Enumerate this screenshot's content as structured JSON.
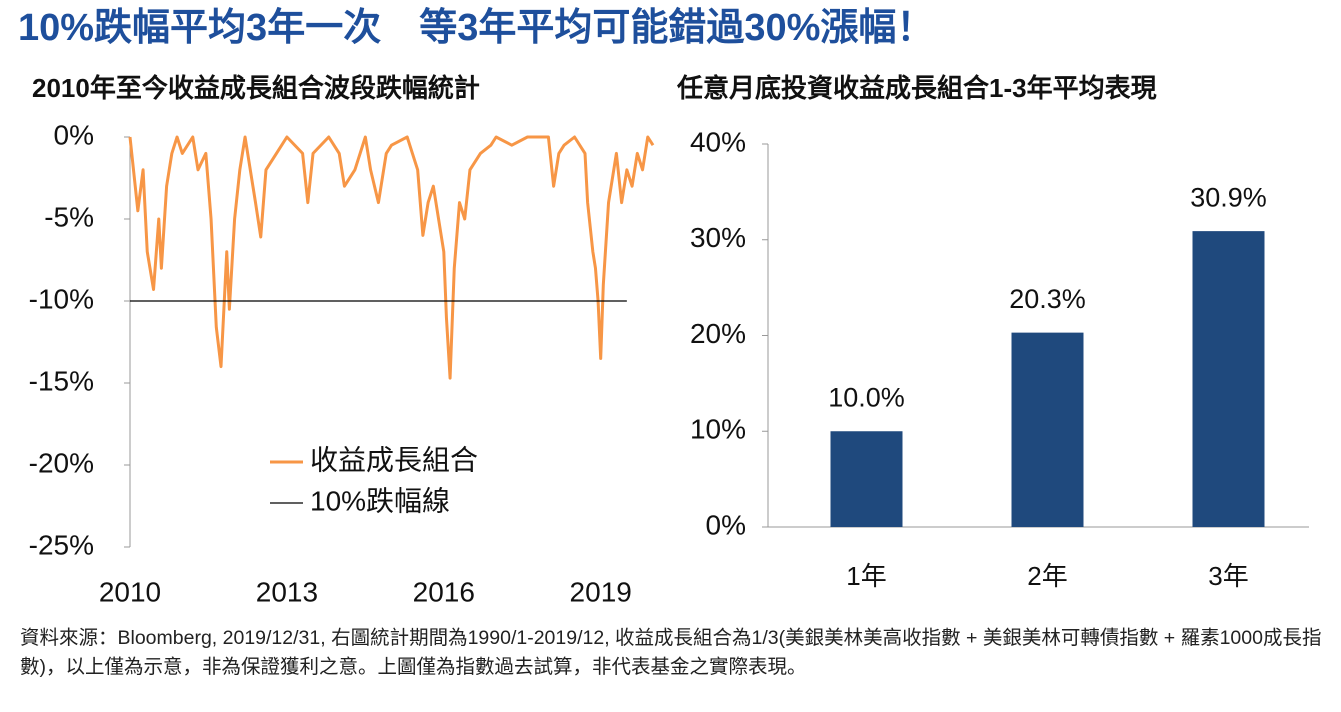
{
  "title": "10%跌幅平均3年一次　等3年平均可能錯過30%漲幅！",
  "footnote": "資料來源：Bloomberg, 2019/12/31, 右圖統計期間為1990/1-2019/12, 收益成長組合為1/3(美銀美林美高收指數 + 美銀美林可轉債指數 + 羅素1000成長指數)，以上僅為示意，非為保證獲利之意。上圖僅為指數過去試算，非代表基金之實際表現。",
  "chart_data": [
    {
      "type": "line",
      "title": "2010年至今收益成長組合波段跌幅統計",
      "xlim": [
        2010,
        2020
      ],
      "xticks": [
        2010,
        2013,
        2016,
        2019
      ],
      "ylim": [
        -25,
        0
      ],
      "yticks": [
        {
          "value": 0,
          "label": "0%"
        },
        {
          "value": -5,
          "label": "-5%"
        },
        {
          "value": -10,
          "label": "-10%"
        },
        {
          "value": -15,
          "label": "-15%"
        },
        {
          "value": -20,
          "label": "-20%"
        },
        {
          "value": -25,
          "label": "-25%"
        }
      ],
      "series": [
        {
          "name": "收益成長組合",
          "color": "#f79646",
          "x": [
            2010.0,
            2010.1,
            2010.15,
            2010.25,
            2010.33,
            2010.45,
            2010.55,
            2010.6,
            2010.7,
            2010.8,
            2010.9,
            2011.0,
            2011.2,
            2011.3,
            2011.45,
            2011.55,
            2011.65,
            2011.74,
            2011.85,
            2011.9,
            2012.0,
            2012.1,
            2012.2,
            2012.4,
            2012.5,
            2012.6,
            2012.8,
            2013.0,
            2013.3,
            2013.4,
            2013.5,
            2013.8,
            2014.0,
            2014.1,
            2014.3,
            2014.5,
            2014.6,
            2014.75,
            2014.9,
            2015.0,
            2015.3,
            2015.4,
            2015.5,
            2015.6,
            2015.7,
            2015.8,
            2015.9,
            2016.0,
            2016.05,
            2016.12,
            2016.2,
            2016.3,
            2016.4,
            2016.5,
            2016.7,
            2016.9,
            2017.0,
            2017.3,
            2017.6,
            2018.0,
            2018.1,
            2018.2,
            2018.3,
            2018.5,
            2018.7,
            2018.75,
            2018.85,
            2018.9,
            2018.95,
            2019.0,
            2019.05,
            2019.15,
            2019.3,
            2019.4,
            2019.5,
            2019.6,
            2019.7,
            2019.8,
            2019.9,
            2020.0
          ],
          "values": [
            0,
            -3,
            -4.5,
            -2,
            -7,
            -9.3,
            -5,
            -8,
            -3,
            -1,
            0,
            -1,
            0,
            -2,
            -1,
            -5,
            -11.6,
            -14,
            -7,
            -10.5,
            -5,
            -2,
            0,
            -4,
            -6.1,
            -2,
            -1,
            0,
            -1,
            -4,
            -1,
            0,
            -1,
            -3,
            -2,
            0,
            -2,
            -4,
            -1,
            -0.5,
            0,
            -1,
            -2,
            -6,
            -4,
            -3,
            -5,
            -7,
            -11,
            -14.7,
            -8,
            -4,
            -5,
            -2,
            -1,
            -0.5,
            0,
            -0.5,
            0,
            0,
            -3,
            -1,
            -0.5,
            0,
            -1,
            -4,
            -7,
            -8,
            -10,
            -13.5,
            -9,
            -4,
            -1,
            -4,
            -2,
            -3,
            -1,
            -2,
            0,
            -0.5
          ]
        },
        {
          "name": "10%跌幅線",
          "color": "#000000",
          "x": [
            2010,
            2019.5
          ],
          "values": [
            -10,
            -10
          ]
        }
      ]
    },
    {
      "type": "bar",
      "title": "任意月底投資收益成長組合1-3年平均表現",
      "categories": [
        "1年",
        "2年",
        "3年"
      ],
      "values": [
        10.0,
        20.3,
        30.9
      ],
      "value_labels": [
        "10.0%",
        "20.3%",
        "30.9%"
      ],
      "color": "#1f497d",
      "ylim": [
        0,
        40
      ],
      "yticks": [
        {
          "value": 0,
          "label": "0%"
        },
        {
          "value": 10,
          "label": "10%"
        },
        {
          "value": 20,
          "label": "20%"
        },
        {
          "value": 30,
          "label": "30%"
        },
        {
          "value": 40,
          "label": "40%"
        }
      ]
    }
  ]
}
